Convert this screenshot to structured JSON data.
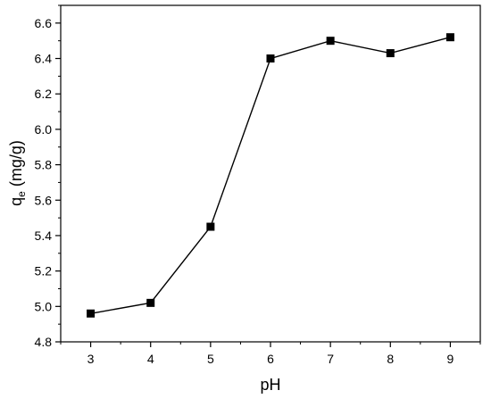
{
  "chart_data": {
    "type": "line",
    "xlabel": "pH",
    "ylabel_main": "q",
    "ylabel_sub": "e",
    "ylabel_unit": " (mg/g)",
    "xlim": [
      2.5,
      9.5
    ],
    "ylim": [
      4.8,
      6.7
    ],
    "xticks": [
      3,
      4,
      5,
      6,
      7,
      8,
      9
    ],
    "yticks": [
      4.8,
      5.0,
      5.2,
      5.4,
      5.6,
      5.8,
      6.0,
      6.2,
      6.4,
      6.6
    ],
    "ytick_labels": [
      "4.8",
      "5.0",
      "5.2",
      "5.4",
      "5.6",
      "5.8",
      "6.0",
      "6.2",
      "6.4",
      "6.6"
    ],
    "x": [
      3,
      4,
      5,
      6,
      7,
      8,
      9
    ],
    "y": [
      4.96,
      5.02,
      5.45,
      6.4,
      6.5,
      6.43,
      6.52
    ],
    "marker": "square",
    "line_color": "#000000",
    "marker_color": "#000000",
    "grid": false,
    "legend": "none"
  }
}
